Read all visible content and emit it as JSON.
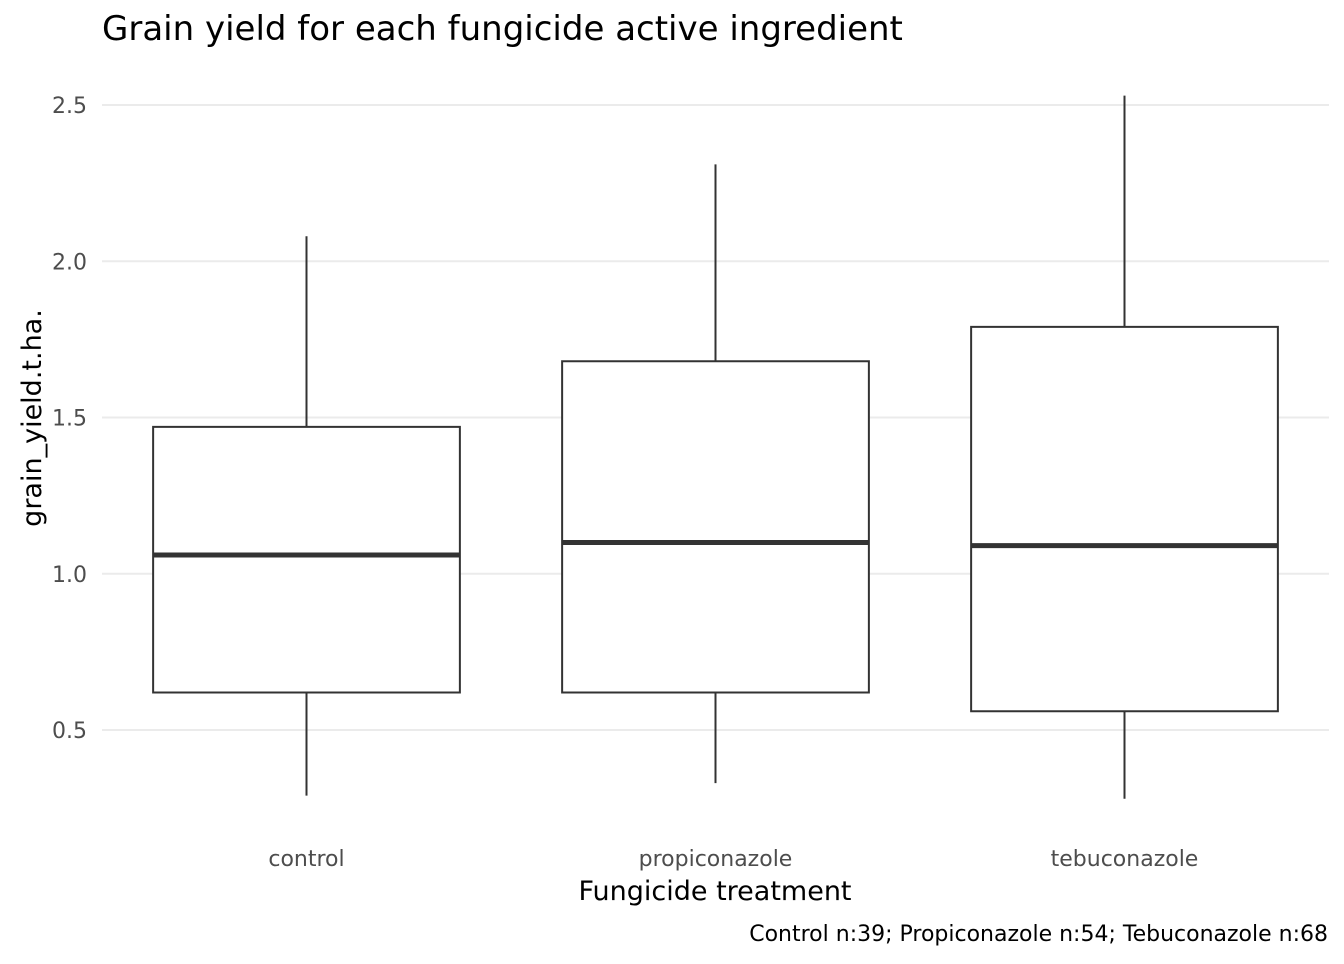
{
  "chart_data": {
    "type": "box",
    "title": "Grain yield for each fungicide active ingredient",
    "xlabel": "Fungicide treatment",
    "ylabel": "grain_yield.t.ha.",
    "caption": "Control n:39; Propiconazole n:54; Tebuconazole n:68",
    "categories": [
      "control",
      "propiconazole",
      "tebuconazole"
    ],
    "ylim": [
      0.23,
      2.55
    ],
    "yticks": [
      0.5,
      1.0,
      1.5,
      2.0,
      2.5
    ],
    "ytick_labels": [
      "0.5",
      "1.0",
      "1.5",
      "2.0",
      "2.5"
    ],
    "grid": true,
    "legend": "none",
    "boxes": [
      {
        "category": "control",
        "min": 0.29,
        "q1": 0.62,
        "median": 1.06,
        "q3": 1.47,
        "max": 2.08
      },
      {
        "category": "propiconazole",
        "min": 0.33,
        "q1": 0.62,
        "median": 1.1,
        "q3": 1.68,
        "max": 2.31
      },
      {
        "category": "tebuconazole",
        "min": 0.28,
        "q1": 0.56,
        "median": 1.09,
        "q3": 1.79,
        "max": 2.53
      }
    ]
  }
}
